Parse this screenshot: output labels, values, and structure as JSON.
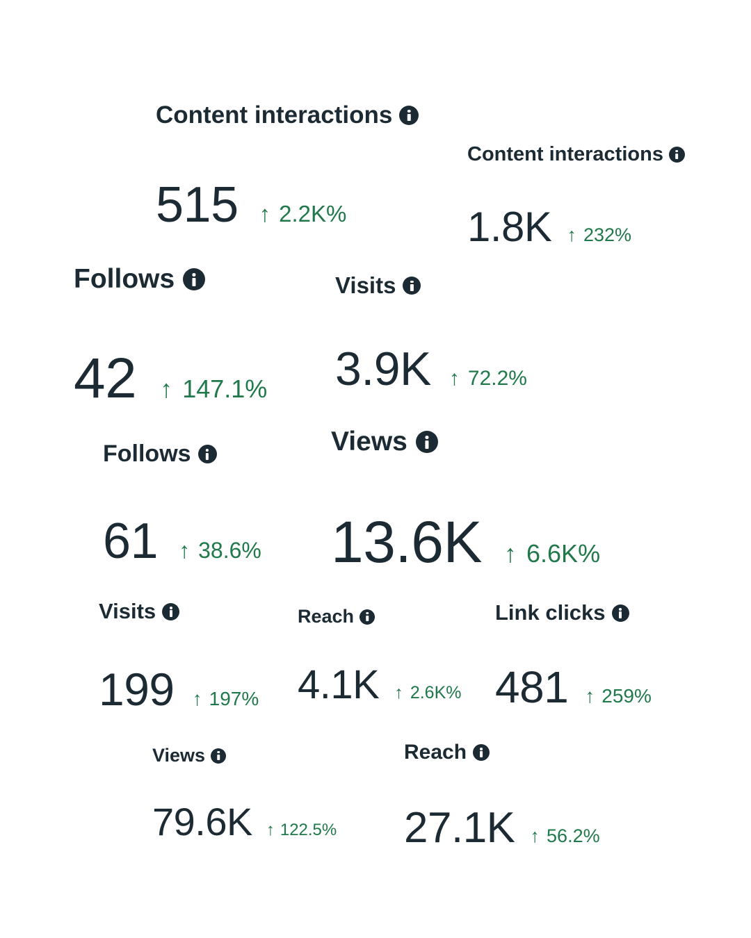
{
  "metrics": [
    {
      "label": "Content interactions",
      "value": "515",
      "change": "2.2K%"
    },
    {
      "label": "Content interactions",
      "value": "1.8K",
      "change": "232%"
    },
    {
      "label": "Follows",
      "value": "42",
      "change": "147.1%"
    },
    {
      "label": "Visits",
      "value": "3.9K",
      "change": "72.2%"
    },
    {
      "label": "Follows",
      "value": "61",
      "change": "38.6%"
    },
    {
      "label": "Views",
      "value": "13.6K",
      "change": "6.6K%"
    },
    {
      "label": "Visits",
      "value": "199",
      "change": "197%"
    },
    {
      "label": "Reach",
      "value": "4.1K",
      "change": "2.6K%"
    },
    {
      "label": "Link clicks",
      "value": "481",
      "change": "259%"
    },
    {
      "label": "Views",
      "value": "79.6K",
      "change": "122.5%"
    },
    {
      "label": "Reach",
      "value": "27.1K",
      "change": "56.2%"
    }
  ],
  "colors": {
    "text": "#1c2b33",
    "positive_change": "#20794a",
    "background": "#ffffff"
  },
  "icons": {
    "info": "info-icon",
    "trend": "arrow-up-icon"
  }
}
